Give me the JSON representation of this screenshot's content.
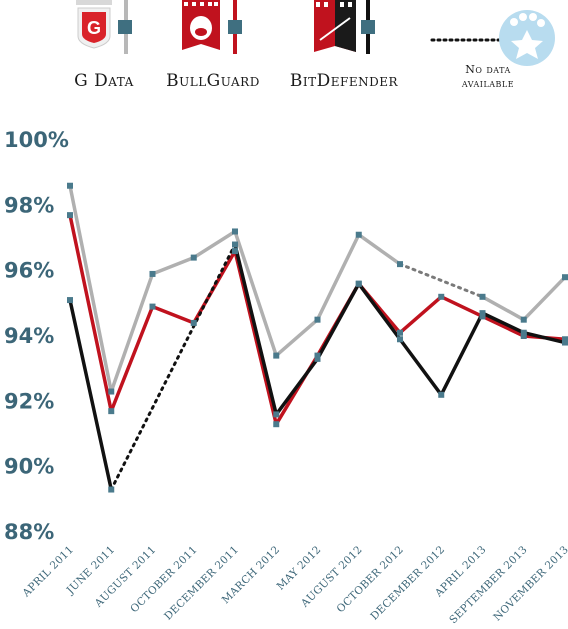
{
  "chart_data": {
    "type": "line",
    "categories": [
      "April 2011",
      "June 2011",
      "August 2011",
      "October 2011",
      "December 2011",
      "March 2012",
      "May 2012",
      "August 2012",
      "October 2012",
      "December 2012",
      "April 2013",
      "September 2013",
      "November 2013"
    ],
    "y_tick_labels": [
      "100%",
      "98%",
      "96%",
      "94%",
      "92%",
      "90%",
      "88%"
    ],
    "ylim": [
      88,
      100
    ],
    "series": [
      {
        "name": "G Data",
        "color": "#b0b0b0",
        "values": [
          98.6,
          92.3,
          95.9,
          96.4,
          97.2,
          93.4,
          94.5,
          97.1,
          96.2,
          null,
          95.2,
          94.5,
          95.8
        ]
      },
      {
        "name": "BullGuard",
        "color": "#c0121e",
        "values": [
          97.7,
          91.7,
          94.9,
          94.4,
          96.6,
          91.3,
          93.4,
          95.6,
          94.1,
          95.2,
          94.6,
          94.0,
          93.9
        ]
      },
      {
        "name": "BitDefender",
        "color": "#111111",
        "values": [
          95.1,
          89.3,
          null,
          null,
          96.8,
          91.6,
          93.3,
          95.6,
          93.9,
          92.2,
          94.7,
          94.1,
          93.8
        ]
      }
    ],
    "gap_style": "dotted"
  },
  "legend": {
    "items": [
      {
        "label": "G Data",
        "icon": "g-data-logo-icon"
      },
      {
        "label": "BullGuard",
        "icon": "bullguard-logo-icon"
      },
      {
        "label": "BitDefender",
        "icon": "bitdefender-logo-icon"
      }
    ],
    "no_data_line1": "No data",
    "no_data_line2": "available",
    "no_data_icon": "paw-star-icon"
  },
  "colors": {
    "axis_text": "#3c6678",
    "marker": "#4a7a8c"
  }
}
